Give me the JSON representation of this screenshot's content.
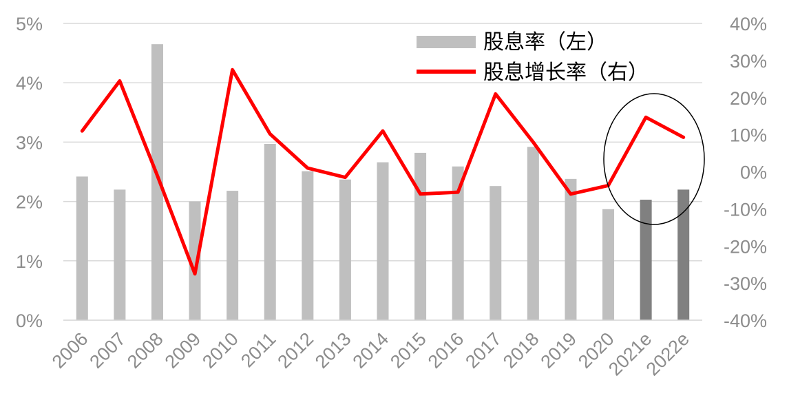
{
  "chart_data": {
    "type": "bar",
    "categories": [
      "2006",
      "2007",
      "2008",
      "2009",
      "2010",
      "2011",
      "2012",
      "2013",
      "2014",
      "2015",
      "2016",
      "2017",
      "2018",
      "2019",
      "2020",
      "2021e",
      "2022e"
    ],
    "y_left_ticks": [
      "0%",
      "1%",
      "2%",
      "3%",
      "4%",
      "5%"
    ],
    "y_right_ticks": [
      "-40%",
      "-30%",
      "-20%",
      "-10%",
      "0%",
      "10%",
      "20%",
      "30%",
      "40%"
    ],
    "ylim_left": [
      0,
      5
    ],
    "ylim_right": [
      -40,
      40
    ],
    "series": [
      {
        "name": "股息率（左）",
        "type": "bar",
        "axis": "left",
        "values": [
          2.42,
          2.2,
          4.65,
          2.0,
          2.18,
          2.97,
          2.51,
          2.37,
          2.66,
          2.82,
          2.59,
          2.26,
          2.92,
          2.38,
          1.87,
          2.03,
          2.2
        ],
        "color": "#bfbfbf",
        "estimate_color": "#808080"
      },
      {
        "name": "股息增长率（右）",
        "type": "line",
        "axis": "right",
        "values": [
          11,
          24.5,
          -1,
          -27.5,
          27.5,
          10.2,
          1,
          -1.5,
          11,
          -6,
          -5.5,
          21,
          8,
          -6,
          -3.7,
          14.7,
          9.3
        ],
        "color": "#ff0000"
      }
    ],
    "estimate_categories": [
      "2021e",
      "2022e"
    ],
    "grid": true,
    "legend_position": "top-right",
    "annotation": "ellipse around 2021e–2022e"
  }
}
